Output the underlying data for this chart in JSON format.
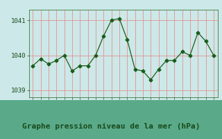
{
  "x": [
    0,
    1,
    2,
    3,
    4,
    5,
    6,
    7,
    8,
    9,
    10,
    11,
    12,
    13,
    14,
    15,
    16,
    17,
    18,
    19,
    20,
    21,
    22,
    23
  ],
  "y": [
    1039.7,
    1039.9,
    1039.75,
    1039.85,
    1040.0,
    1039.55,
    1039.7,
    1039.7,
    1040.0,
    1040.55,
    1041.0,
    1041.05,
    1040.45,
    1039.6,
    1039.55,
    1039.3,
    1039.6,
    1039.85,
    1039.85,
    1040.1,
    1040.0,
    1040.65,
    1040.4,
    1040.0
  ],
  "line_color": "#1a5c1a",
  "marker": "D",
  "marker_size": 2.5,
  "plot_bg_color": "#cce8e8",
  "outer_bg_color": "#cce8e8",
  "bottom_bg_color": "#5a9e8a",
  "grid_color": "#e88888",
  "title": "Graphe pression niveau de la mer (hPa)",
  "ylim": [
    1038.8,
    1041.3
  ],
  "yticks": [
    1039,
    1040,
    1041
  ],
  "xlim": [
    -0.5,
    23.5
  ],
  "title_fontsize": 8,
  "tick_fontsize": 6.5,
  "title_color": "#1a4a1a"
}
